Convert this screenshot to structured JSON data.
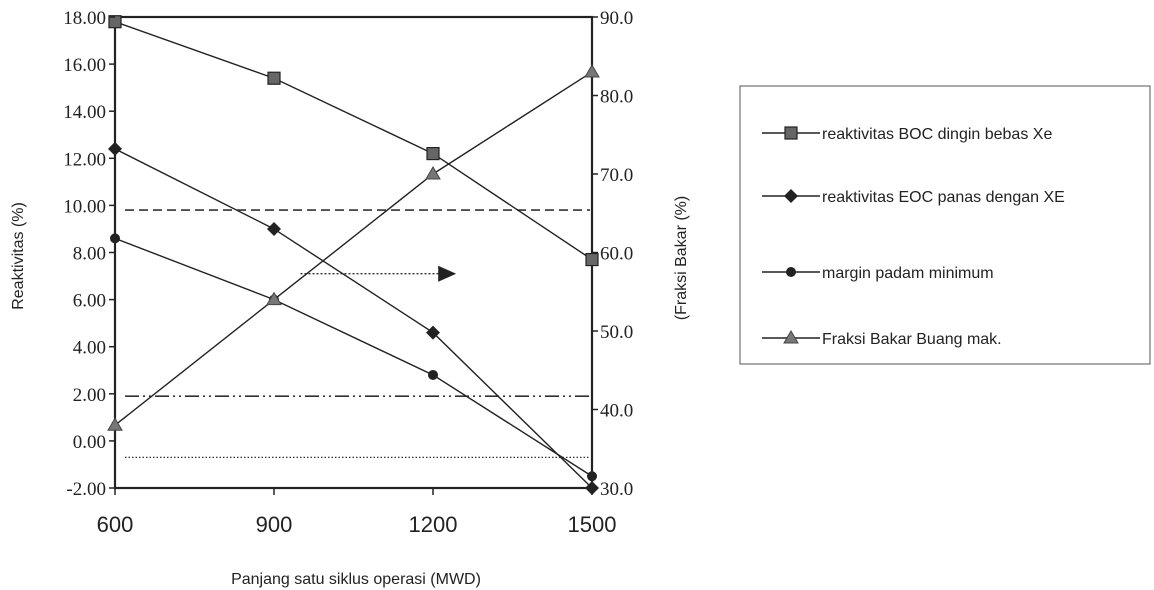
{
  "chart_data": {
    "type": "line",
    "xlabel": "Panjang satu siklus operasi (MWD)",
    "ylabel_left": "Reaktivitas (%)",
    "ylabel_right": "(Fraksi Bakar (%)",
    "x": [
      600,
      900,
      1200,
      1500
    ],
    "x_tick_labels": [
      "600",
      "900",
      "1200",
      "1500"
    ],
    "ylim_left": [
      -2,
      18
    ],
    "ylim_right": [
      30,
      90
    ],
    "y_left_tick_labels": [
      "18.00",
      "16.00",
      "14.00",
      "12.00",
      "10.00",
      "8.00",
      "6.00",
      "4.00",
      "2.00",
      "0.00",
      "-2.00"
    ],
    "y_left_tick_values": [
      18,
      16,
      14,
      12,
      10,
      8,
      6,
      4,
      2,
      0,
      -2
    ],
    "y_right_tick_labels": [
      "90.0",
      "80.0",
      "70.0",
      "60.0",
      "50.0",
      "40.0",
      "30.0"
    ],
    "y_right_tick_values": [
      90,
      80,
      70,
      60,
      50,
      40,
      30
    ],
    "grid": false,
    "legend_position": "right",
    "series": [
      {
        "name": "reaktivitas BOC dingin bebas Xe",
        "marker": "square",
        "axis": "left",
        "values": [
          17.8,
          15.4,
          12.2,
          7.7
        ]
      },
      {
        "name": "reaktivitas EOC panas dengan XE",
        "marker": "diamond",
        "axis": "left",
        "values": [
          12.4,
          9.0,
          4.6,
          -2.0
        ]
      },
      {
        "name": "margin padam minimum",
        "marker": "circle",
        "axis": "left",
        "values": [
          8.6,
          6.0,
          2.8,
          -1.5
        ]
      },
      {
        "name": "Fraksi Bakar Buang mak.",
        "marker": "triangle",
        "axis": "right",
        "values": [
          38.0,
          54.0,
          70.0,
          83.0
        ]
      }
    ],
    "reference_lines": [
      {
        "style": "dashed",
        "axis": "left",
        "y": 9.8
      },
      {
        "style": "dash-dot-dot",
        "axis": "left",
        "y": 1.9
      },
      {
        "style": "dotted",
        "axis": "left",
        "y": -0.7
      }
    ],
    "annotation": {
      "type": "arrow",
      "direction": "right",
      "axis": "left",
      "y": 7.1,
      "x_from": 950,
      "x_to": 1240
    }
  }
}
